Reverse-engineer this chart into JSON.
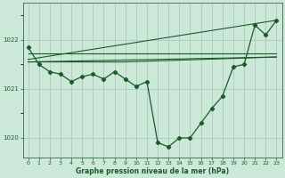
{
  "bg_color": "#cce8d8",
  "grid_color": "#aaccbb",
  "line_color": "#1a5c28",
  "xlabel": "Graphe pression niveau de la mer (hPa)",
  "ylim": [
    1019.6,
    1022.75
  ],
  "xlim": [
    -0.5,
    23.5
  ],
  "yticks": [
    1020,
    1021,
    1022
  ],
  "xticks": [
    0,
    1,
    2,
    3,
    4,
    5,
    6,
    7,
    8,
    9,
    10,
    11,
    12,
    13,
    14,
    15,
    16,
    17,
    18,
    19,
    20,
    21,
    22,
    23
  ],
  "main_x": [
    0,
    1,
    2,
    3,
    4,
    5,
    6,
    7,
    8,
    9,
    10,
    11,
    12,
    13,
    14,
    15,
    16,
    17,
    18,
    19,
    20,
    21,
    22,
    23
  ],
  "main_y": [
    1021.85,
    1021.5,
    1021.35,
    1021.3,
    1021.15,
    1021.25,
    1021.3,
    1021.2,
    1021.35,
    1021.2,
    1021.05,
    1021.15,
    1019.9,
    1019.82,
    1020.0,
    1020.0,
    1020.3,
    1020.6,
    1020.85,
    1021.45,
    1021.5,
    1022.3,
    1022.1,
    1022.4
  ],
  "ref_lines": [
    {
      "x": [
        0,
        23
      ],
      "y": [
        1021.55,
        1021.65
      ]
    },
    {
      "x": [
        0,
        23
      ],
      "y": [
        1021.6,
        1022.4
      ]
    },
    {
      "x": [
        0,
        9,
        23
      ],
      "y": [
        1021.55,
        1021.55,
        1021.65
      ]
    },
    {
      "x": [
        0,
        23
      ],
      "y": [
        1021.72,
        1021.72
      ]
    }
  ]
}
